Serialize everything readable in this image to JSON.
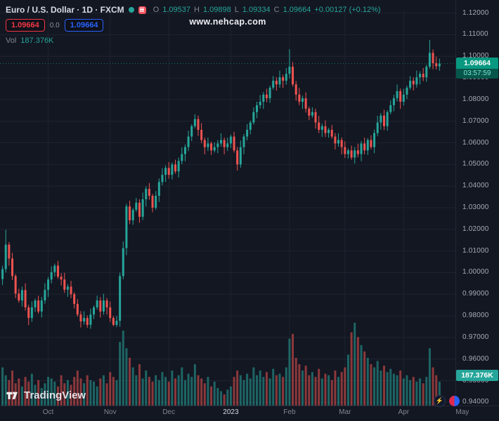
{
  "header": {
    "title": "Euro / U.S. Dollar · 1D · FXCM",
    "ohlc": {
      "o_label": "O",
      "o": "1.09537",
      "h_label": "H",
      "h": "1.09898",
      "l_label": "L",
      "l": "1.09334",
      "c_label": "C",
      "c": "1.09664",
      "change": "+0.00127 (+0.12%)"
    },
    "sell_price": "1.09664",
    "spread": "0.0",
    "buy_price": "1.09664",
    "vol_label": "Vol",
    "vol_value": "187.376K"
  },
  "watermark": {
    "text": "www.nehcap.com"
  },
  "price_axis": {
    "labels": [
      "1.12000",
      "1.11000",
      "1.10000",
      "1.09000",
      "1.08000",
      "1.07000",
      "1.06000",
      "1.05000",
      "1.04000",
      "1.03000",
      "1.02000",
      "1.01000",
      "1.00000",
      "0.99000",
      "0.98000",
      "0.97000",
      "0.96000",
      "0.95000",
      "0.94000"
    ],
    "last_price_label": "1.09664",
    "countdown": "03:57:59",
    "volume_label": "187.376K"
  },
  "footer": {
    "logo_text": "TradingView"
  },
  "fab": {
    "bolt_glyph": "⚡"
  },
  "colors": {
    "bg": "#131722",
    "grid": "#1e2330",
    "up": "#26a69a",
    "down": "#ef5350",
    "vol_up": "rgba(38,166,154,0.55)",
    "vol_down": "rgba(239,83,80,0.55)",
    "badge_green": "#089981",
    "accent_red": "#f23645",
    "accent_blue": "#2962ff"
  },
  "chart_data": {
    "type": "candlestick",
    "title": "Euro / U.S. Dollar",
    "symbol": "EUR/USD",
    "timeframe": "1D",
    "exchange": "FXCM",
    "ylim": [
      0.94,
      1.12
    ],
    "price_step": 0.01,
    "last_price": 1.09664,
    "last_candle": {
      "o": 1.09537,
      "h": 1.09898,
      "l": 1.09334,
      "c": 1.09664,
      "change": 0.00127,
      "change_pct": 0.12
    },
    "x_ticks": [
      {
        "label": "Oct",
        "index": 14
      },
      {
        "label": "Nov",
        "index": 33
      },
      {
        "label": "Dec",
        "index": 51
      },
      {
        "label": "2023",
        "index": 70,
        "major": true
      },
      {
        "label": "Feb",
        "index": 88
      },
      {
        "label": "Mar",
        "index": 105
      },
      {
        "label": "Apr",
        "index": 123
      },
      {
        "label": "May",
        "index": 141
      }
    ],
    "first_open": 0.997,
    "closes": [
      1.0016,
      1.0129,
      1.0065,
      0.9984,
      0.9903,
      0.9871,
      0.9919,
      0.9839,
      0.979,
      0.9839,
      0.9871,
      0.982,
      0.9871,
      0.992,
      0.9968,
      1.0002,
      1.0032,
      0.9981,
      0.9968,
      0.9921,
      0.9935,
      0.99,
      0.9855,
      0.9806,
      0.9774,
      0.979,
      0.9758,
      0.9806,
      0.9839,
      0.9871,
      0.982,
      0.9871,
      0.9839,
      0.979,
      0.9758,
      0.9777,
      0.9984,
      1.0113,
      1.0306,
      1.0242,
      1.029,
      1.0323,
      1.0258,
      1.0339,
      1.0387,
      1.0355,
      1.03,
      1.0355,
      1.0419,
      1.0452,
      1.0484,
      1.0452,
      1.05,
      1.0468,
      1.0516,
      1.0548,
      1.058,
      1.0629,
      1.0677,
      1.071,
      1.066,
      1.0613,
      1.058,
      1.0597,
      1.0565,
      1.058,
      1.0597,
      1.0613,
      1.058,
      1.0597,
      1.0629,
      1.0565,
      1.05,
      1.058,
      1.0629,
      1.066,
      1.0694,
      1.0742,
      1.0774,
      1.079,
      1.0823,
      1.0806,
      1.0855,
      1.0887,
      1.087,
      1.0903,
      1.0887,
      1.0919,
      1.0952,
      1.087,
      1.0823,
      1.079,
      1.0806,
      1.0758,
      1.0726,
      1.0742,
      1.0694,
      1.066,
      1.0677,
      1.0645,
      1.066,
      1.0629,
      1.0597,
      1.0613,
      1.058,
      1.0548,
      1.0565,
      1.0532,
      1.0565,
      1.0548,
      1.0597,
      1.0565,
      1.0613,
      1.058,
      1.0645,
      1.0694,
      1.0726,
      1.0677,
      1.0742,
      1.0774,
      1.0806,
      1.0839,
      1.079,
      1.0823,
      1.0855,
      1.0887,
      1.087,
      1.0903,
      1.0919,
      1.0903,
      1.0952,
      1.1016,
      1.0968,
      1.0954,
      1.09664
    ],
    "overrides": {
      "1": {
        "h": 1.0198
      },
      "26": {
        "l": 0.9745
      },
      "34": {
        "l": 0.9752
      },
      "88": {
        "h": 1.1033
      },
      "131": {
        "h": 1.1076
      },
      "134": {
        "o": 1.09537,
        "h": 1.09898,
        "l": 1.09334,
        "c": 1.09664
      }
    },
    "volumes": [
      300,
      238,
      200,
      275,
      175,
      213,
      150,
      225,
      188,
      250,
      163,
      200,
      138,
      175,
      225,
      213,
      188,
      150,
      238,
      175,
      200,
      163,
      225,
      275,
      213,
      175,
      238,
      200,
      188,
      150,
      213,
      238,
      175,
      263,
      225,
      200,
      500,
      588,
      450,
      375,
      300,
      238,
      325,
      213,
      275,
      225,
      188,
      238,
      200,
      263,
      225,
      188,
      275,
      213,
      238,
      300,
      200,
      250,
      225,
      325,
      238,
      213,
      175,
      225,
      150,
      188,
      138,
      113,
      88,
      125,
      150,
      225,
      275,
      238,
      200,
      250,
      213,
      300,
      238,
      275,
      225,
      263,
      213,
      288,
      238,
      250,
      225,
      300,
      525,
      563,
      375,
      325,
      275,
      313,
      238,
      263,
      225,
      288,
      213,
      250,
      238,
      200,
      275,
      225,
      263,
      300,
      400,
      575,
      650,
      538,
      475,
      425,
      375,
      325,
      300,
      350,
      275,
      313,
      263,
      288,
      250,
      238,
      275,
      213,
      238,
      200,
      225,
      188,
      213,
      175,
      225,
      450,
      300,
      238,
      187
    ],
    "volume_unit": "K",
    "last_volume_label": "187.376K"
  }
}
